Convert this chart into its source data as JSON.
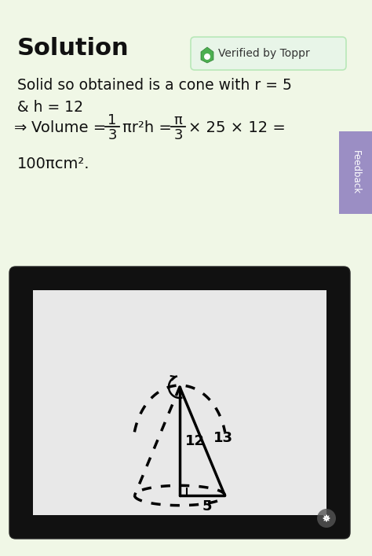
{
  "bg_color": "#f0f7e6",
  "title": "Solution",
  "title_fontsize": 22,
  "verified_text": "Verified by Toppr",
  "verified_bg": "#e8f5e8",
  "verified_border": "#b8e8b8",
  "feedback_bg": "#9b8ec4",
  "diagram_outer_bg": "#111111",
  "diagram_inner_bg": "#ececec",
  "text_color": "#111111",
  "side_5": "5",
  "side_12": "12",
  "side_13": "13"
}
